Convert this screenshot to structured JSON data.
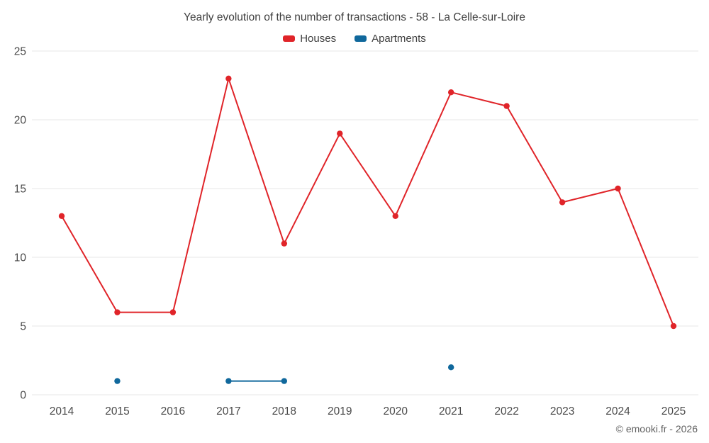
{
  "chart_data": {
    "type": "line",
    "title": "Yearly evolution of the number of transactions - 58 - La Celle-sur-Loire",
    "x": [
      2014,
      2015,
      2016,
      2017,
      2018,
      2019,
      2020,
      2021,
      2022,
      2023,
      2024,
      2025
    ],
    "series": [
      {
        "name": "Houses",
        "color": "#e02429",
        "values": [
          13,
          6,
          6,
          23,
          11,
          19,
          13,
          22,
          21,
          14,
          15,
          5
        ]
      },
      {
        "name": "Apartments",
        "color": "#10689c",
        "values": [
          null,
          1,
          null,
          1,
          1,
          null,
          null,
          2,
          null,
          null,
          null,
          null
        ]
      }
    ],
    "ylim": [
      0,
      25
    ],
    "yticks": [
      0,
      5,
      10,
      15,
      20,
      25
    ],
    "grid": "horizontal",
    "legend_position": "top-center",
    "xlabel": "",
    "ylabel": ""
  },
  "footer": {
    "text": "© emooki.fr - 2026"
  },
  "colors": {
    "grid": "#e7e7e7",
    "axis_text": "#4a4a4a",
    "title_text": "#3f3f3f",
    "background": "#ffffff"
  }
}
